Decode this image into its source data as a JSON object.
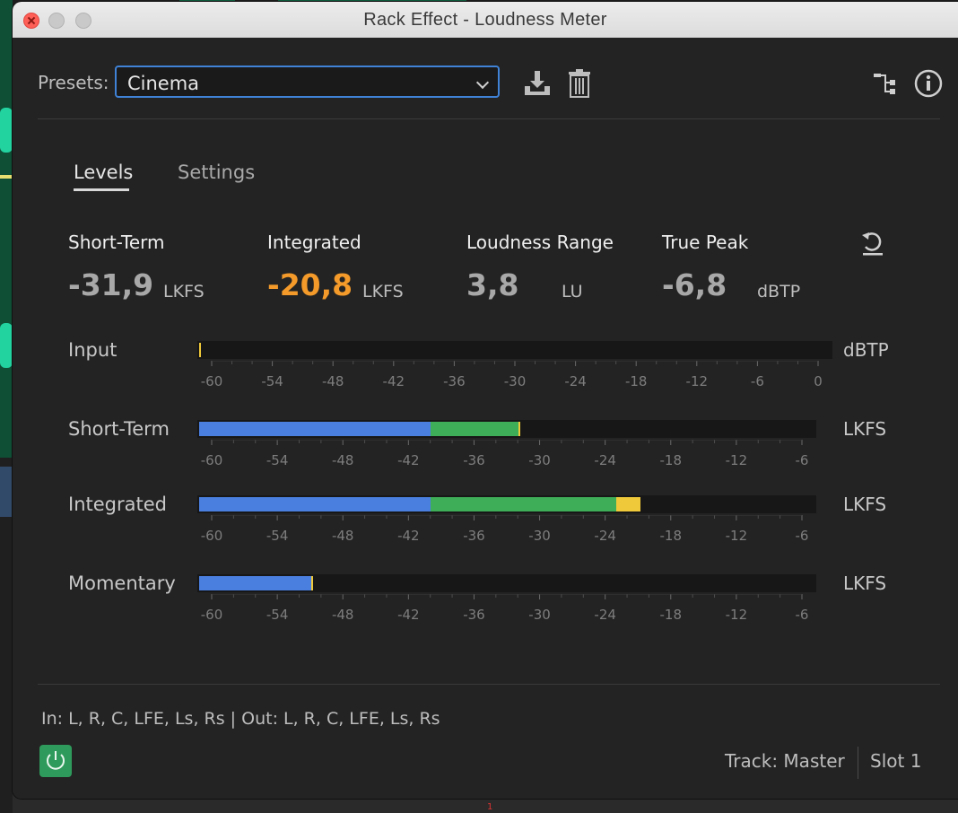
{
  "window": {
    "title": "Rack Effect - Loudness Meter"
  },
  "presets": {
    "label": "Presets:",
    "selected": "Cinema"
  },
  "icons": {
    "save_preset": "download-icon",
    "delete_preset": "trash-icon",
    "route": "routing-icon",
    "info": "info-icon",
    "reset": "reset-icon",
    "power": "power-icon"
  },
  "tabs": [
    {
      "label": "Levels",
      "active": true
    },
    {
      "label": "Settings",
      "active": false
    }
  ],
  "stats": [
    {
      "label": "Short-Term",
      "value": "-31,9",
      "unit": "LKFS"
    },
    {
      "label": "Integrated",
      "value": "-20,8",
      "unit": "LKFS",
      "highlight": "#f39a2a"
    },
    {
      "label": "Loudness Range",
      "value": "3,8",
      "unit": "LU"
    },
    {
      "label": "True Peak",
      "value": "-6,8",
      "unit": "dBTP"
    }
  ],
  "colors": {
    "blue": "#4a7fe0",
    "green": "#3fae58",
    "yellow": "#f0c93a",
    "accent": "#3f82d6",
    "power": "#2e9a5b"
  },
  "meters": [
    {
      "label": "Input",
      "unit": "dBTP",
      "scale": [
        "-60",
        "-54",
        "-48",
        "-42",
        "-36",
        "-30",
        "-24",
        "-18",
        "-12",
        "-6",
        "0"
      ],
      "range": [
        -60,
        0
      ],
      "level": -60,
      "peak": -60,
      "segments": []
    },
    {
      "label": "Short-Term",
      "unit": "LKFS",
      "scale": [
        "-60",
        "-54",
        "-48",
        "-42",
        "-36",
        "-30",
        "-24",
        "-18",
        "-12",
        "-6"
      ],
      "range": [
        -60,
        -6
      ],
      "level": -31.9,
      "peak": -31.9,
      "segments": [
        {
          "from": -60,
          "to": -40,
          "color": "#4a7fe0"
        },
        {
          "from": -40,
          "to": -31.9,
          "color": "#3fae58"
        }
      ]
    },
    {
      "label": "Integrated",
      "unit": "LKFS",
      "scale": [
        "-60",
        "-54",
        "-48",
        "-42",
        "-36",
        "-30",
        "-24",
        "-18",
        "-12",
        "-6"
      ],
      "range": [
        -60,
        -6
      ],
      "level": -20.8,
      "peak": null,
      "segments": [
        {
          "from": -60,
          "to": -40,
          "color": "#4a7fe0"
        },
        {
          "from": -40,
          "to": -23,
          "color": "#3fae58"
        },
        {
          "from": -23,
          "to": -20.8,
          "color": "#f0c93a"
        }
      ]
    },
    {
      "label": "Momentary",
      "unit": "LKFS",
      "scale": [
        "-60",
        "-54",
        "-48",
        "-42",
        "-36",
        "-30",
        "-24",
        "-18",
        "-12",
        "-6"
      ],
      "range": [
        -60,
        -6
      ],
      "level": -50.9,
      "peak": -50.9,
      "segments": [
        {
          "from": -60,
          "to": -50.9,
          "color": "#4a7fe0"
        }
      ]
    }
  ],
  "footer": {
    "io": "In: L, R, C, LFE, Ls, Rs | Out: L, R, C, LFE, Ls, Rs",
    "track": "Track: Master",
    "slot": "Slot 1"
  }
}
